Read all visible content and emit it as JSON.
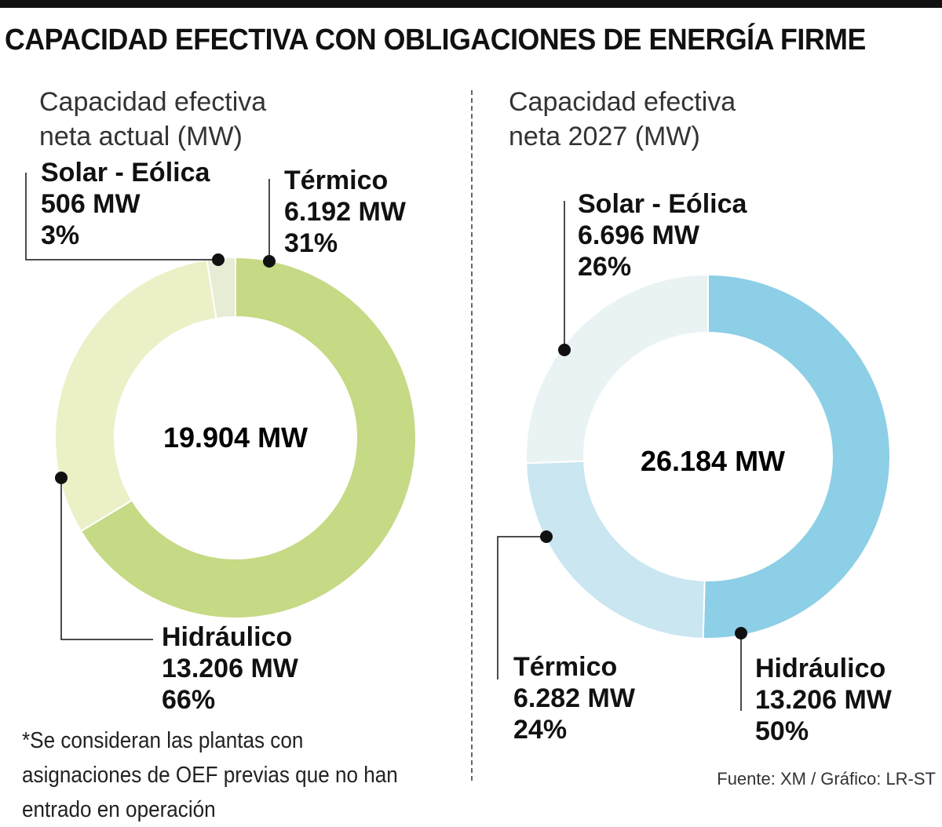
{
  "title": "CAPACIDAD EFECTIVA CON OBLIGACIONES DE ENERGÍA FIRME",
  "chart_data": [
    {
      "type": "pie",
      "title_lines": [
        "Capacidad efectiva",
        "neta actual (MW)"
      ],
      "total_label": "19.904 MW",
      "slices": [
        {
          "name": "Térmico",
          "value_label": "6.192 MW",
          "pct_label": "31%",
          "value": 6192
        },
        {
          "name": "Hidráulico",
          "value_label": "13.206 MW",
          "pct_label": "66%",
          "value": 13206
        },
        {
          "name": "Solar - Eólica",
          "value_label": "506 MW",
          "pct_label": "3%",
          "value": 506
        }
      ],
      "colors": {
        "Hidráulico": "#c6d984",
        "Térmico": "#ecf0c7",
        "Solar - Eólica": "#e7ecd5"
      }
    },
    {
      "type": "pie",
      "title_lines": [
        "Capacidad efectiva",
        "neta 2027 (MW)"
      ],
      "total_label": "26.184 MW",
      "slices": [
        {
          "name": "Hidráulico",
          "value_label": "13.206 MW",
          "pct_label": "50%",
          "value": 13206
        },
        {
          "name": "Térmico",
          "value_label": "6.282 MW",
          "pct_label": "24%",
          "value": 6282
        },
        {
          "name": "Solar - Eólica",
          "value_label": "6.696 MW",
          "pct_label": "26%",
          "value": 6696
        }
      ],
      "colors": {
        "Hidráulico": "#8ccfe6",
        "Térmico": "#c9e6f1",
        "Solar - Eólica": "#eaf3f3"
      }
    }
  ],
  "note": "*Se consideran las plantas con asignaciones de OEF previas que no han entrado en operación",
  "source": "Fuente: XM / Gráfico: LR-ST"
}
